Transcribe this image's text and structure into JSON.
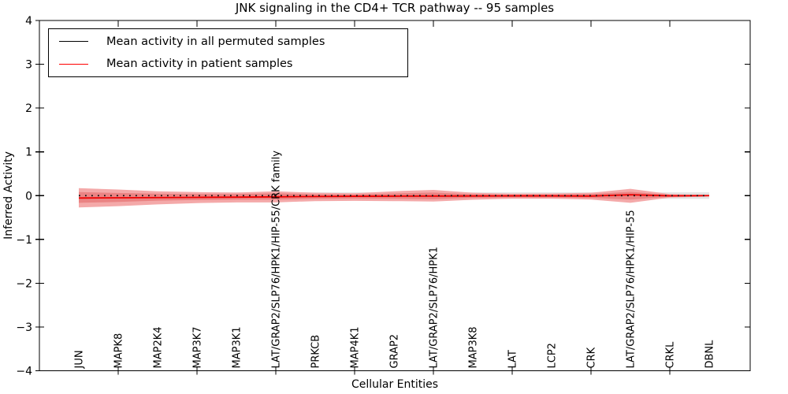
{
  "chart_data": {
    "type": "line",
    "title": "JNK signaling in the CD4+ TCR pathway -- 95 samples",
    "xlabel": "Cellular Entities",
    "ylabel": "Inferred Activity",
    "ylim": [
      -4,
      4
    ],
    "ytick_values": [
      4,
      3,
      2,
      1,
      0,
      -1,
      -2,
      -3,
      -4
    ],
    "ytick_labels": [
      "4",
      "3",
      "2",
      "1",
      "0",
      "−1",
      "−2",
      "−3",
      "−4"
    ],
    "xticks_every_other_indices": [
      1,
      3,
      5,
      7,
      9,
      11,
      13,
      15
    ],
    "legend_position": "upper left",
    "grid": false,
    "categories": [
      "JUN",
      "MAPK8",
      "MAP2K4",
      "MAP3K7",
      "MAP3K1",
      "LAT/GRAP2/SLP76/HPK1/HIP-55/CRK family",
      "PRKCB",
      "MAP4K1",
      "GRAP2",
      "LAT/GRAP2/SLP76/HPK1",
      "MAP3K8",
      "LAT",
      "LCP2",
      "CRK",
      "LAT/GRAP2/SLP76/HPK1/HIP-55",
      "CRKL",
      "DBNL"
    ],
    "series": [
      {
        "name": "Mean activity in all permuted samples",
        "color": "#000000",
        "line_style": "dotted-on-plot",
        "values": [
          0,
          0,
          0,
          0,
          0,
          0,
          0,
          0,
          0,
          0,
          0,
          0,
          0,
          0,
          0,
          0,
          0
        ],
        "band_top": [
          0.075,
          0.075,
          0.075,
          0.075,
          0.075,
          0.075,
          0.075,
          0.075,
          0.075,
          0.075,
          0.075,
          0.075,
          0.075,
          0.075,
          0.075,
          0.075,
          0.075
        ],
        "band_bottom": [
          -0.075,
          -0.075,
          -0.075,
          -0.075,
          -0.075,
          -0.075,
          -0.075,
          -0.075,
          -0.075,
          -0.075,
          -0.075,
          -0.075,
          -0.075,
          -0.075,
          -0.075,
          -0.075,
          -0.075
        ],
        "band_color": "#d9d9d9"
      },
      {
        "name": "Mean activity in patient samples",
        "color": "#ff0000",
        "line_style": "solid",
        "values": [
          -0.055,
          -0.05,
          -0.045,
          -0.04,
          -0.035,
          -0.028,
          -0.02,
          -0.015,
          -0.012,
          -0.01,
          -0.008,
          -0.006,
          -0.006,
          -0.01,
          0.02,
          -0.004,
          0.0
        ],
        "band_outer_top": [
          0.17,
          0.14,
          0.1,
          0.08,
          0.07,
          0.1,
          0.065,
          0.055,
          0.1,
          0.13,
          0.065,
          0.045,
          0.05,
          0.065,
          0.155,
          0.035,
          0.012
        ],
        "band_outer_bottom": [
          -0.27,
          -0.24,
          -0.2,
          -0.17,
          -0.155,
          -0.155,
          -0.125,
          -0.12,
          -0.125,
          -0.135,
          -0.095,
          -0.07,
          -0.07,
          -0.09,
          -0.165,
          -0.045,
          -0.02
        ],
        "band_inner_top": [
          0.08,
          0.06,
          0.045,
          0.035,
          0.035,
          0.055,
          0.032,
          0.028,
          0.05,
          0.07,
          0.032,
          0.022,
          0.025,
          0.035,
          0.085,
          0.018,
          0.006
        ],
        "band_inner_bottom": [
          -0.165,
          -0.145,
          -0.115,
          -0.1,
          -0.09,
          -0.09,
          -0.072,
          -0.065,
          -0.07,
          -0.08,
          -0.052,
          -0.04,
          -0.042,
          -0.052,
          -0.09,
          -0.026,
          -0.01
        ],
        "band_outer_color": "#f4a9a9",
        "band_inner_color": "#ea8383"
      }
    ],
    "colors": {
      "spine": "#000000",
      "zero_dotted_line": "#111111",
      "patient_line": "#ee0000"
    }
  }
}
